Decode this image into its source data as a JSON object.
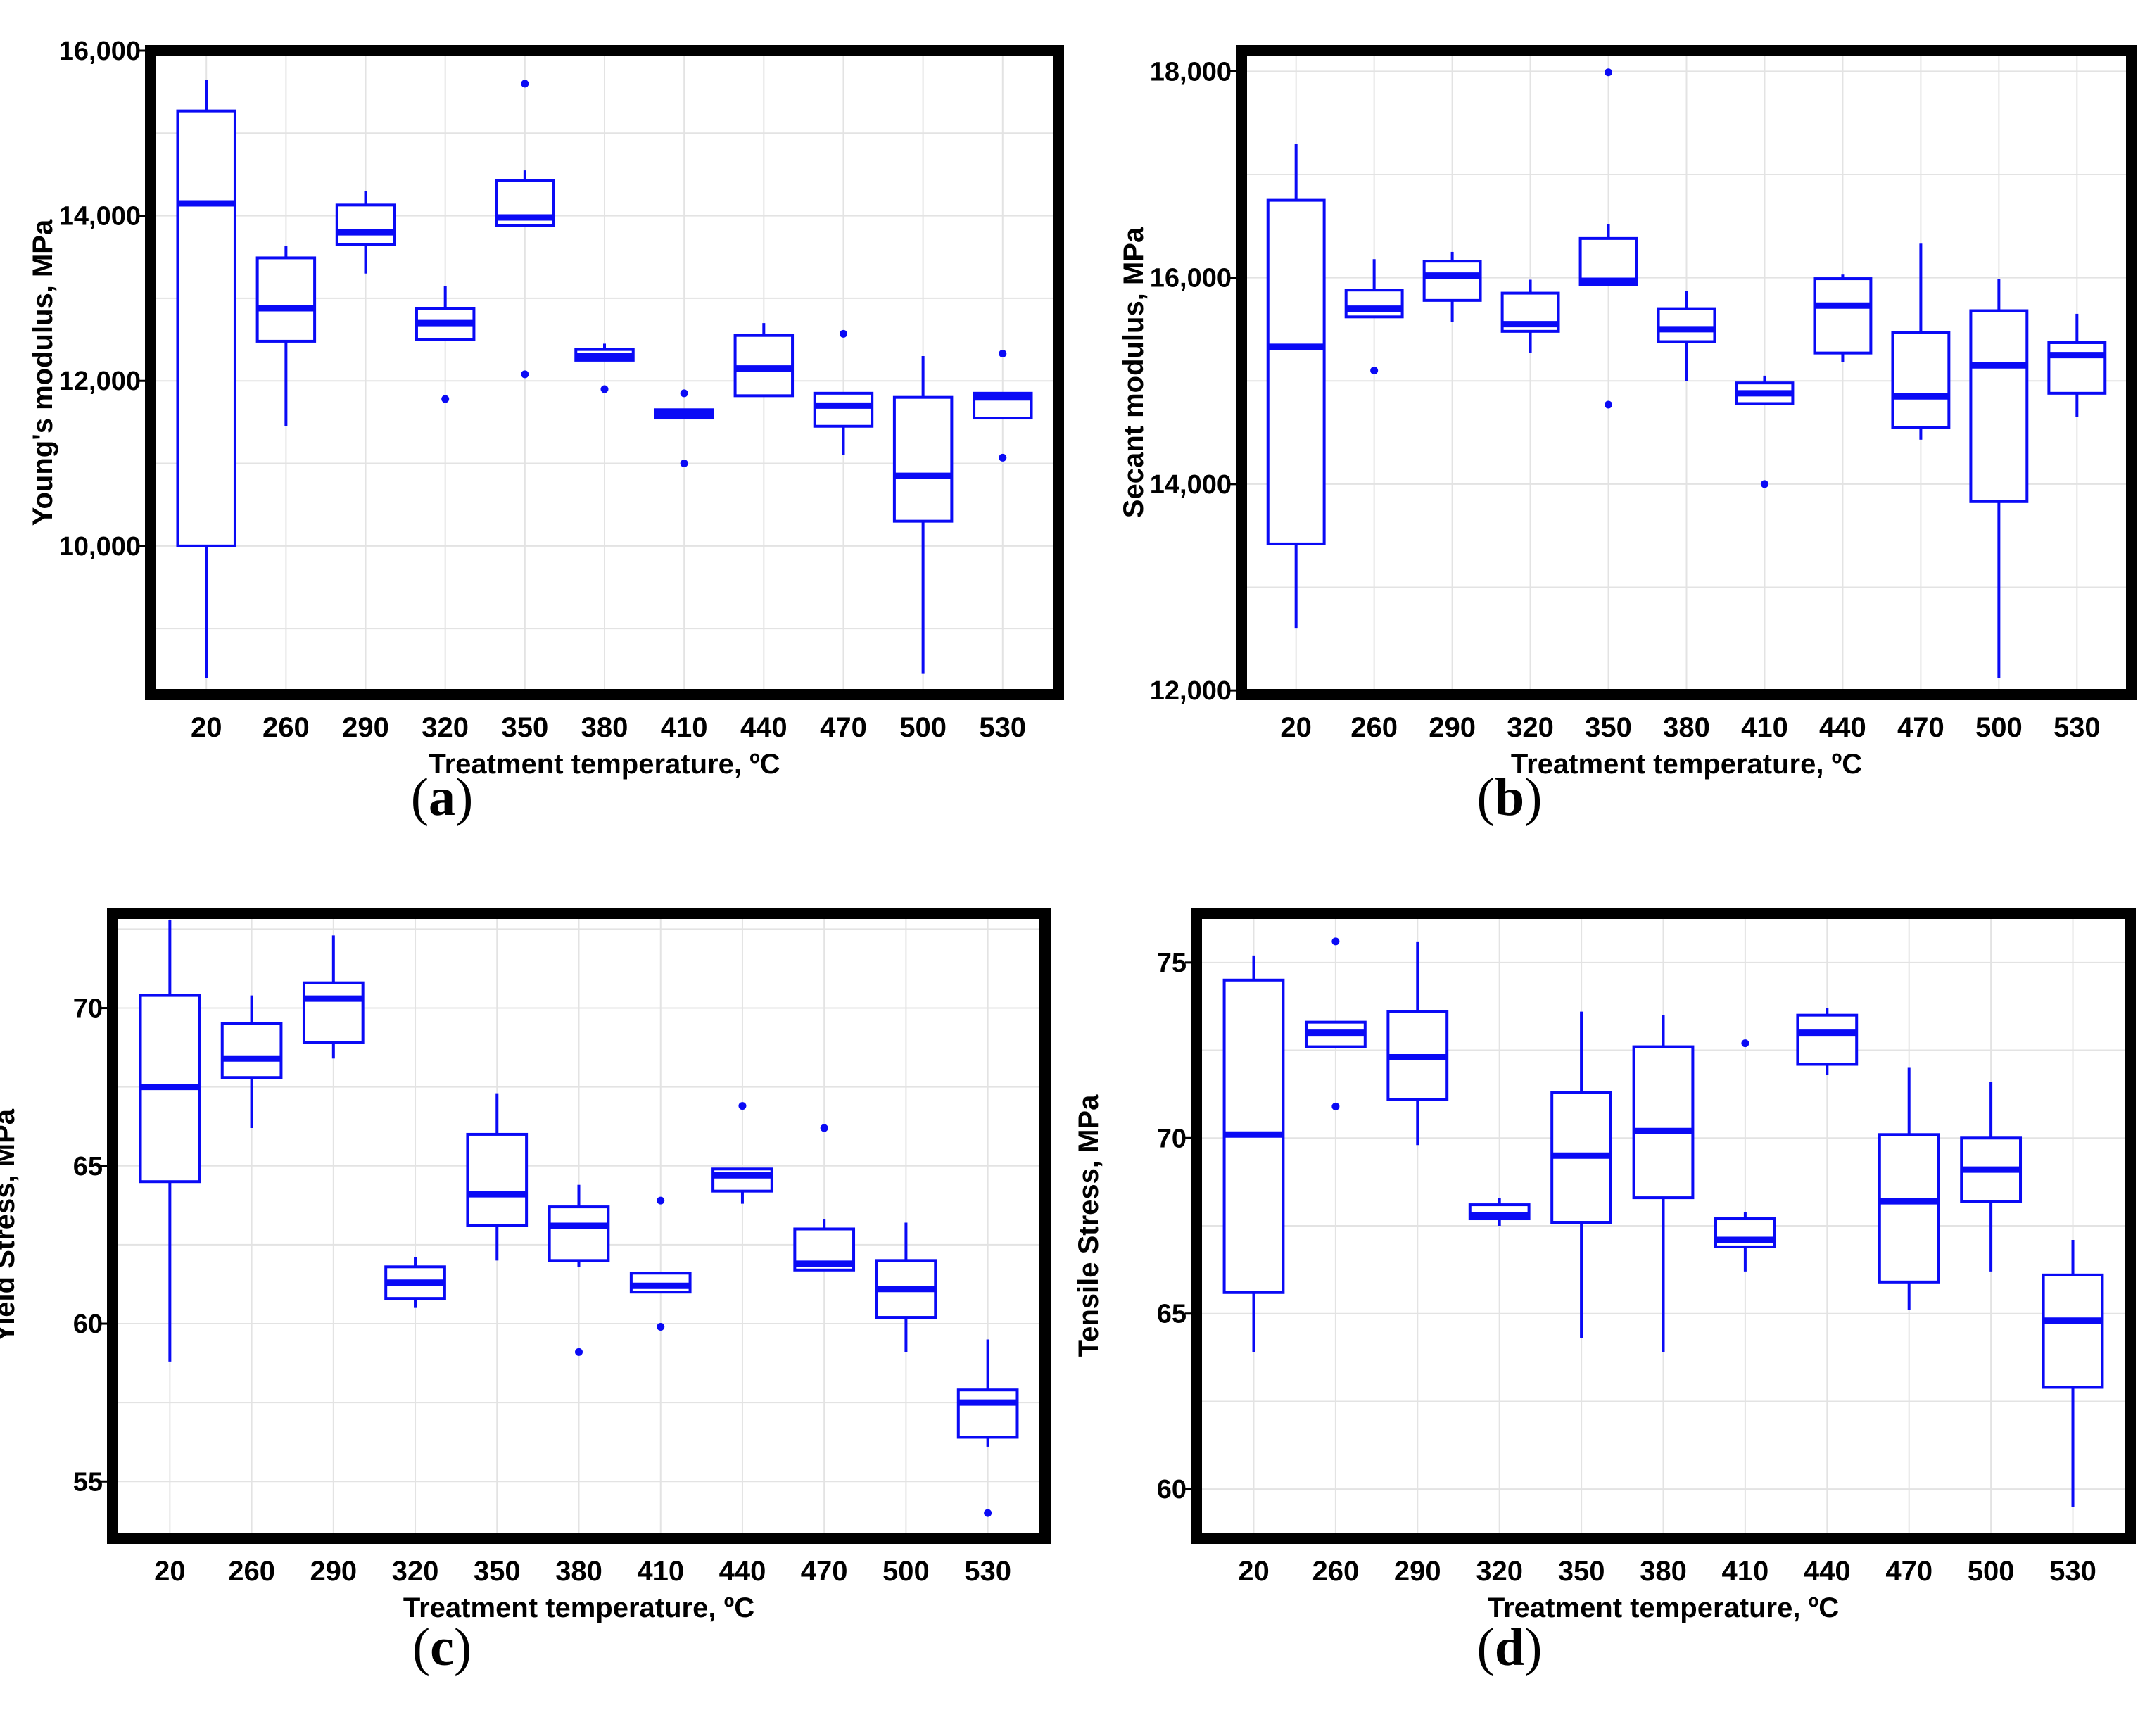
{
  "colors": {
    "box": "#0a0af5",
    "frame": "#000000",
    "grid": "#e3e3e3",
    "text": "#000000"
  },
  "chart_data": [
    {
      "id": "a",
      "type": "boxplot",
      "caption": "a",
      "xlabel": "Treatment temperature, ºC",
      "ylabel": "Young's modulus, MPa",
      "categories": [
        "20",
        "260",
        "290",
        "320",
        "350",
        "380",
        "410",
        "440",
        "470",
        "500",
        "530"
      ],
      "ylim": [
        8200,
        16000
      ],
      "yticks": [
        10000,
        12000,
        14000,
        16000
      ],
      "ytick_labels": [
        "10,000",
        "12,000",
        "14,000",
        "16,000"
      ],
      "boxes": [
        {
          "low": 8400,
          "q1": 10000,
          "median": 14150,
          "q3": 15270,
          "high": 15650,
          "outliers": []
        },
        {
          "low": 11450,
          "q1": 12480,
          "median": 12880,
          "q3": 13490,
          "high": 13630,
          "outliers": []
        },
        {
          "low": 13300,
          "q1": 13650,
          "median": 13800,
          "q3": 14130,
          "high": 14300,
          "outliers": []
        },
        {
          "low": 12500,
          "q1": 12500,
          "median": 12700,
          "q3": 12880,
          "high": 13150,
          "outliers": [
            11780
          ]
        },
        {
          "low": 13880,
          "q1": 13880,
          "median": 13980,
          "q3": 14430,
          "high": 14550,
          "outliers": [
            15600,
            12080
          ]
        },
        {
          "low": 12250,
          "q1": 12250,
          "median": 12300,
          "q3": 12380,
          "high": 12450,
          "outliers": [
            11900
          ]
        },
        {
          "low": 11550,
          "q1": 11550,
          "median": 11600,
          "q3": 11650,
          "high": 11650,
          "outliers": [
            11850,
            11000
          ]
        },
        {
          "low": 11820,
          "q1": 11820,
          "median": 12150,
          "q3": 12550,
          "high": 12700,
          "outliers": []
        },
        {
          "low": 11100,
          "q1": 11450,
          "median": 11700,
          "q3": 11850,
          "high": 11850,
          "outliers": [
            12570
          ]
        },
        {
          "low": 8450,
          "q1": 10300,
          "median": 10850,
          "q3": 11800,
          "high": 12300,
          "outliers": []
        },
        {
          "low": 11550,
          "q1": 11550,
          "median": 11800,
          "q3": 11850,
          "high": 11850,
          "outliers": [
            12330,
            11070
          ]
        }
      ]
    },
    {
      "id": "b",
      "type": "boxplot",
      "caption": "b",
      "xlabel": "Treatment temperature, ºC",
      "ylabel": "Secant modulus, MPa",
      "categories": [
        "20",
        "260",
        "290",
        "320",
        "350",
        "380",
        "410",
        "440",
        "470",
        "500",
        "530"
      ],
      "ylim": [
        11960,
        18200
      ],
      "yticks": [
        12000,
        14000,
        16000,
        18000
      ],
      "ytick_labels": [
        "12,000",
        "14,000",
        "16,000",
        "18,000"
      ],
      "boxes": [
        {
          "low": 12600,
          "q1": 13420,
          "median": 15330,
          "q3": 16750,
          "high": 17300,
          "outliers": []
        },
        {
          "low": 15620,
          "q1": 15620,
          "median": 15700,
          "q3": 15880,
          "high": 16180,
          "outliers": [
            15100
          ]
        },
        {
          "low": 15570,
          "q1": 15780,
          "median": 16020,
          "q3": 16160,
          "high": 16250,
          "outliers": []
        },
        {
          "low": 15270,
          "q1": 15480,
          "median": 15550,
          "q3": 15850,
          "high": 15980,
          "outliers": []
        },
        {
          "low": 15930,
          "q1": 15930,
          "median": 15970,
          "q3": 16380,
          "high": 16520,
          "outliers": [
            17990,
            14770
          ]
        },
        {
          "low": 15000,
          "q1": 15380,
          "median": 15500,
          "q3": 15700,
          "high": 15870,
          "outliers": []
        },
        {
          "low": 14780,
          "q1": 14780,
          "median": 14880,
          "q3": 14980,
          "high": 15050,
          "outliers": [
            14000
          ]
        },
        {
          "low": 15180,
          "q1": 15270,
          "median": 15730,
          "q3": 15990,
          "high": 16030,
          "outliers": []
        },
        {
          "low": 14430,
          "q1": 14550,
          "median": 14850,
          "q3": 15470,
          "high": 16330,
          "outliers": []
        },
        {
          "low": 12120,
          "q1": 13830,
          "median": 15150,
          "q3": 15680,
          "high": 15990,
          "outliers": []
        },
        {
          "low": 14650,
          "q1": 14880,
          "median": 15250,
          "q3": 15370,
          "high": 15650,
          "outliers": []
        }
      ]
    },
    {
      "id": "c",
      "type": "boxplot",
      "caption": "c",
      "xlabel": "Treatment temperature, ºC",
      "ylabel": "Yield Stress, MPa",
      "categories": [
        "20",
        "260",
        "290",
        "320",
        "350",
        "380",
        "410",
        "440",
        "470",
        "500",
        "530"
      ],
      "ylim": [
        53.2,
        73.0
      ],
      "yticks": [
        55,
        60,
        65,
        70
      ],
      "ytick_labels": [
        "55",
        "60",
        "65",
        "70"
      ],
      "boxes": [
        {
          "low": 58.8,
          "q1": 64.5,
          "median": 67.5,
          "q3": 70.4,
          "high": 72.8,
          "outliers": []
        },
        {
          "low": 66.2,
          "q1": 67.8,
          "median": 68.4,
          "q3": 69.5,
          "high": 70.4,
          "outliers": []
        },
        {
          "low": 68.4,
          "q1": 68.9,
          "median": 70.3,
          "q3": 70.8,
          "high": 72.3,
          "outliers": []
        },
        {
          "low": 60.5,
          "q1": 60.8,
          "median": 61.3,
          "q3": 61.8,
          "high": 62.1,
          "outliers": []
        },
        {
          "low": 62.0,
          "q1": 63.1,
          "median": 64.1,
          "q3": 66.0,
          "high": 67.3,
          "outliers": []
        },
        {
          "low": 61.8,
          "q1": 62.0,
          "median": 63.1,
          "q3": 63.7,
          "high": 64.4,
          "outliers": [
            59.1
          ]
        },
        {
          "low": 61.0,
          "q1": 61.0,
          "median": 61.2,
          "q3": 61.6,
          "high": 61.6,
          "outliers": [
            63.9,
            59.9
          ]
        },
        {
          "low": 63.8,
          "q1": 64.2,
          "median": 64.7,
          "q3": 64.9,
          "high": 64.9,
          "outliers": [
            66.9
          ]
        },
        {
          "low": 61.7,
          "q1": 61.7,
          "median": 61.9,
          "q3": 63.0,
          "high": 63.3,
          "outliers": [
            66.2
          ]
        },
        {
          "low": 59.1,
          "q1": 60.2,
          "median": 61.1,
          "q3": 62.0,
          "high": 63.2,
          "outliers": []
        },
        {
          "low": 56.1,
          "q1": 56.4,
          "median": 57.5,
          "q3": 57.9,
          "high": 59.5,
          "outliers": [
            54.0
          ]
        }
      ]
    },
    {
      "id": "d",
      "type": "boxplot",
      "caption": "d",
      "xlabel": "Treatment temperature, ºC",
      "ylabel": "Tensile Stress, MPa",
      "categories": [
        "20",
        "260",
        "290",
        "320",
        "350",
        "380",
        "410",
        "440",
        "470",
        "500",
        "530"
      ],
      "ylim": [
        58.6,
        76.4
      ],
      "yticks": [
        60,
        65,
        70,
        75
      ],
      "ytick_labels": [
        "60",
        "65",
        "70",
        "75"
      ],
      "boxes": [
        {
          "low": 63.9,
          "q1": 65.6,
          "median": 70.1,
          "q3": 74.5,
          "high": 75.2,
          "outliers": []
        },
        {
          "low": 72.6,
          "q1": 72.6,
          "median": 73.0,
          "q3": 73.3,
          "high": 73.3,
          "outliers": [
            75.6,
            70.9
          ]
        },
        {
          "low": 69.8,
          "q1": 71.1,
          "median": 72.3,
          "q3": 73.6,
          "high": 75.6,
          "outliers": []
        },
        {
          "low": 67.5,
          "q1": 67.7,
          "median": 67.8,
          "q3": 68.1,
          "high": 68.3,
          "outliers": []
        },
        {
          "low": 64.3,
          "q1": 67.6,
          "median": 69.5,
          "q3": 71.3,
          "high": 73.6,
          "outliers": []
        },
        {
          "low": 63.9,
          "q1": 68.3,
          "median": 70.2,
          "q3": 72.6,
          "high": 73.5,
          "outliers": []
        },
        {
          "low": 66.2,
          "q1": 66.9,
          "median": 67.1,
          "q3": 67.7,
          "high": 67.9,
          "outliers": [
            72.7
          ]
        },
        {
          "low": 71.8,
          "q1": 72.1,
          "median": 73.0,
          "q3": 73.5,
          "high": 73.7,
          "outliers": []
        },
        {
          "low": 65.1,
          "q1": 65.9,
          "median": 68.2,
          "q3": 70.1,
          "high": 72.0,
          "outliers": []
        },
        {
          "low": 66.2,
          "q1": 68.2,
          "median": 69.1,
          "q3": 70.0,
          "high": 71.6,
          "outliers": []
        },
        {
          "low": 59.5,
          "q1": 62.9,
          "median": 64.8,
          "q3": 66.1,
          "high": 67.1,
          "outliers": []
        }
      ]
    }
  ]
}
